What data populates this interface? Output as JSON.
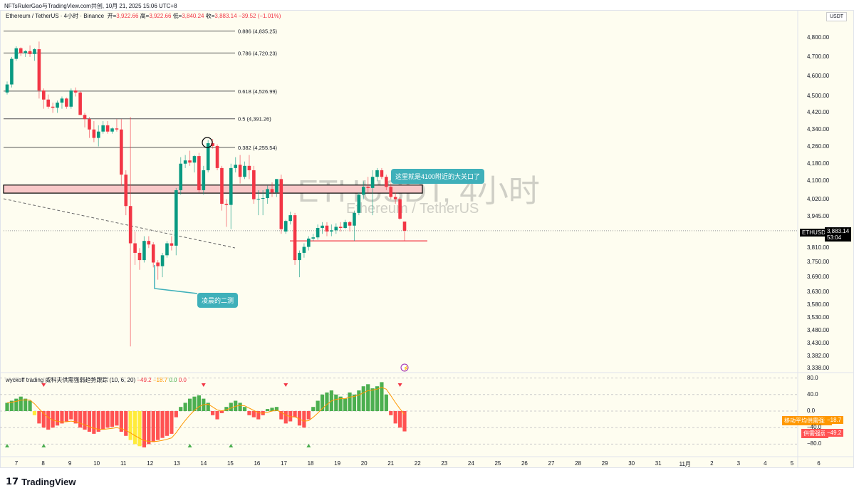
{
  "credit": "NFTsRulerGao与TradingView.com共创, 10月 21, 2025 15:06 UTC+8",
  "legend": {
    "symbol": "Ethereum / TetherUS · 4小时 · Binance",
    "open_label": "开=",
    "open": "3,922.66",
    "high_label": "高=",
    "high": "3,922.66",
    "low_label": "低=",
    "low": "3,840.24",
    "close_label": "收=",
    "close": "3,883.14",
    "change": "−39.52 (−1.01%)"
  },
  "currency": "USDT",
  "watermark": {
    "title": "ETHUSDT, 4小时",
    "subtitle": "Ethereum / TetherUS"
  },
  "fib": [
    {
      "label": "0.886 (4,835.25)",
      "price": 4835.25
    },
    {
      "label": "0.786 (4,720.23)",
      "price": 4720.23
    },
    {
      "label": "0.618 (4,526.99)",
      "price": 4526.99
    },
    {
      "label": "0.5 (4,391.26)",
      "price": 4391.26
    },
    {
      "label": "0.382 (4,255.54)",
      "price": 4255.54
    }
  ],
  "zone": {
    "top": 4083,
    "bottom": 4047
  },
  "support_price": 3840.24,
  "annotations": {
    "resistance": "这里就是4100附近的大关口了",
    "retest": "凌晨的二测"
  },
  "price_axis": [
    "4,800.00",
    "4,700.00",
    "4,600.00",
    "4,500.00",
    "4,420.00",
    "4,340.00",
    "4,260.00",
    "4,180.00",
    "4,100.00",
    "4,020.00",
    "3,945.00",
    "3,810.00",
    "3,750.00",
    "3,690.00",
    "3,630.00",
    "3,580.00",
    "3,530.00",
    "3,480.00",
    "3,430.00",
    "3,382.00",
    "3,338.00"
  ],
  "last_price": {
    "symbol": "ETHUSDT",
    "price": "3,883.14",
    "countdown": "53:04",
    "value": 3883.14
  },
  "time_axis": [
    "7",
    "8",
    "9",
    "10",
    "11",
    "12",
    "13",
    "14",
    "15",
    "16",
    "17",
    "18",
    "19",
    "20",
    "21",
    "22",
    "23",
    "24",
    "25",
    "26",
    "27",
    "28",
    "29",
    "30",
    "31",
    "11月",
    "2",
    "3",
    "4",
    "5",
    "6"
  ],
  "indicator": {
    "name": "wyckoff trading 威科夫供需强弱趋势跟踪 (10, 6, 20)",
    "v1": "−49.2",
    "v2": "−18.7",
    "v3": "0.0",
    "v4": "0.0",
    "axis": [
      "80.0",
      "40.0",
      "0.0",
      "−40.0",
      "−80.0"
    ],
    "ma_tag": {
      "label": "移动平均供需强弱",
      "value": "−18.7"
    },
    "hist_tag": {
      "label": "供需强弱",
      "value": "−49.2"
    }
  },
  "colors": {
    "up": "#089981",
    "down": "#f23645",
    "bg": "#fefdf0",
    "hist_up": "#4caf50",
    "hist_down": "#ff5252",
    "hist_warn": "#ffeb3b",
    "ma": "#ff9800",
    "callout": "#3fb0ba"
  },
  "chart_data": {
    "type": "candlestick",
    "ylim": [
      3338,
      4800
    ],
    "scale": "log",
    "candles": [
      [
        4520,
        4575,
        4510,
        4560
      ],
      [
        4560,
        4700,
        4545,
        4690
      ],
      [
        4690,
        4755,
        4680,
        4745
      ],
      [
        4745,
        4750,
        4705,
        4720
      ],
      [
        4720,
        4735,
        4700,
        4730
      ],
      [
        4730,
        4760,
        4700,
        4715
      ],
      [
        4715,
        4745,
        4680,
        4740
      ],
      [
        4740,
        4780,
        4490,
        4530
      ],
      [
        4530,
        4540,
        4440,
        4485
      ],
      [
        4485,
        4510,
        4440,
        4450
      ],
      [
        4450,
        4470,
        4420,
        4445
      ],
      [
        4445,
        4480,
        4420,
        4470
      ],
      [
        4470,
        4500,
        4440,
        4490
      ],
      [
        4490,
        4495,
        4440,
        4450
      ],
      [
        4450,
        4540,
        4440,
        4530
      ],
      [
        4530,
        4545,
        4500,
        4520
      ],
      [
        4520,
        4525,
        4410,
        4410
      ],
      [
        4410,
        4420,
        4350,
        4390
      ],
      [
        4390,
        4400,
        4300,
        4340
      ],
      [
        4340,
        4380,
        4280,
        4300
      ],
      [
        4300,
        4360,
        4260,
        4330
      ],
      [
        4330,
        4380,
        4320,
        4360
      ],
      [
        4360,
        4380,
        4320,
        4330
      ],
      [
        4330,
        4350,
        4320,
        4345
      ],
      [
        4345,
        4390,
        4330,
        4340
      ],
      [
        4340,
        4390,
        4080,
        4130
      ],
      [
        4130,
        4150,
        3950,
        3990
      ],
      [
        3990,
        4400,
        3420,
        3830
      ],
      [
        3830,
        3880,
        3740,
        3790
      ],
      [
        3790,
        3810,
        3720,
        3760
      ],
      [
        3760,
        3860,
        3750,
        3840
      ],
      [
        3840,
        3860,
        3810,
        3825
      ],
      [
        3825,
        3835,
        3730,
        3750
      ],
      [
        3750,
        3760,
        3680,
        3735
      ],
      [
        3735,
        3790,
        3690,
        3780
      ],
      [
        3780,
        3840,
        3770,
        3830
      ],
      [
        3830,
        3860,
        3800,
        3820
      ],
      [
        3820,
        4070,
        3780,
        4060
      ],
      [
        4060,
        4210,
        4040,
        4180
      ],
      [
        4180,
        4220,
        4160,
        4195
      ],
      [
        4195,
        4240,
        4170,
        4185
      ],
      [
        4185,
        4220,
        4140,
        4215
      ],
      [
        4215,
        4230,
        4050,
        4060
      ],
      [
        4060,
        4170,
        4040,
        4150
      ],
      [
        4150,
        4290,
        4140,
        4275
      ],
      [
        4275,
        4295,
        4250,
        4262
      ],
      [
        4262,
        4270,
        4150,
        4160
      ],
      [
        4160,
        4170,
        3970,
        4000
      ],
      [
        4000,
        4020,
        3900,
        3995
      ],
      [
        3995,
        4180,
        3890,
        4160
      ],
      [
        4160,
        4210,
        4140,
        4175
      ],
      [
        4175,
        4220,
        4090,
        4120
      ],
      [
        4120,
        4190,
        4110,
        4170
      ],
      [
        4170,
        4220,
        4110,
        4150
      ],
      [
        4150,
        4170,
        4000,
        4020
      ],
      [
        4020,
        4060,
        3950,
        4022
      ],
      [
        4022,
        4060,
        3950,
        4025
      ],
      [
        4025,
        4080,
        4000,
        4065
      ],
      [
        4065,
        4095,
        4030,
        4050
      ],
      [
        4050,
        4110,
        4030,
        4110
      ],
      [
        4110,
        4130,
        3870,
        3890
      ],
      [
        3880,
        3930,
        3870,
        3925
      ],
      [
        3925,
        3965,
        3910,
        3950
      ],
      [
        3950,
        3960,
        3740,
        3760
      ],
      [
        3760,
        3800,
        3690,
        3790
      ],
      [
        3790,
        3830,
        3770,
        3815
      ],
      [
        3815,
        3860,
        3800,
        3850
      ],
      [
        3850,
        3870,
        3840,
        3855
      ],
      [
        3855,
        3910,
        3845,
        3895
      ],
      [
        3895,
        3920,
        3870,
        3905
      ],
      [
        3905,
        3920,
        3860,
        3880
      ],
      [
        3880,
        3910,
        3860,
        3885
      ],
      [
        3885,
        3915,
        3870,
        3900
      ],
      [
        3900,
        3920,
        3880,
        3895
      ],
      [
        3895,
        3930,
        3890,
        3920
      ],
      [
        3920,
        3925,
        3880,
        3905
      ],
      [
        3905,
        3970,
        3840,
        3960
      ],
      [
        3960,
        4050,
        3950,
        4040
      ],
      [
        4040,
        4100,
        4020,
        4075
      ],
      [
        4075,
        4120,
        4050,
        4070
      ],
      [
        4070,
        4150,
        3950,
        4120
      ],
      [
        4120,
        4160,
        4100,
        4150
      ],
      [
        4150,
        4160,
        4110,
        4120
      ],
      [
        4120,
        4130,
        4060,
        4075
      ],
      [
        4075,
        4090,
        4020,
        4030
      ],
      [
        4030,
        4050,
        4000,
        4020
      ],
      [
        4020,
        4030,
        3930,
        3935
      ],
      [
        3922.66,
        3922.66,
        3840.24,
        3883.14
      ]
    ],
    "histogram": [
      20,
      25,
      30,
      35,
      30,
      25,
      -10,
      -30,
      -40,
      -45,
      -40,
      -35,
      -30,
      -25,
      -20,
      -30,
      -40,
      -45,
      -50,
      -55,
      -50,
      -45,
      -40,
      -38,
      -35,
      -50,
      -60,
      -70,
      -80,
      -85,
      -88,
      -80,
      -75,
      -70,
      -65,
      -60,
      -55,
      -15,
      10,
      20,
      30,
      35,
      38,
      30,
      20,
      -10,
      -20,
      -5,
      10,
      20,
      25,
      20,
      10,
      -10,
      -15,
      -20,
      -10,
      5,
      8,
      10,
      -20,
      -30,
      -25,
      -15,
      -35,
      -40,
      -20,
      10,
      25,
      40,
      45,
      50,
      40,
      35,
      30,
      45,
      40,
      50,
      60,
      65,
      55,
      60,
      70,
      40,
      -10,
      -30,
      -40,
      -49.2
    ],
    "warn_idx": [
      6,
      27,
      28,
      29
    ],
    "ylim_indicator": [
      -80,
      80
    ],
    "signals_down_idx": [
      8,
      43,
      61,
      86
    ],
    "signals_up_idx": [
      0,
      8,
      40,
      49,
      66
    ]
  }
}
